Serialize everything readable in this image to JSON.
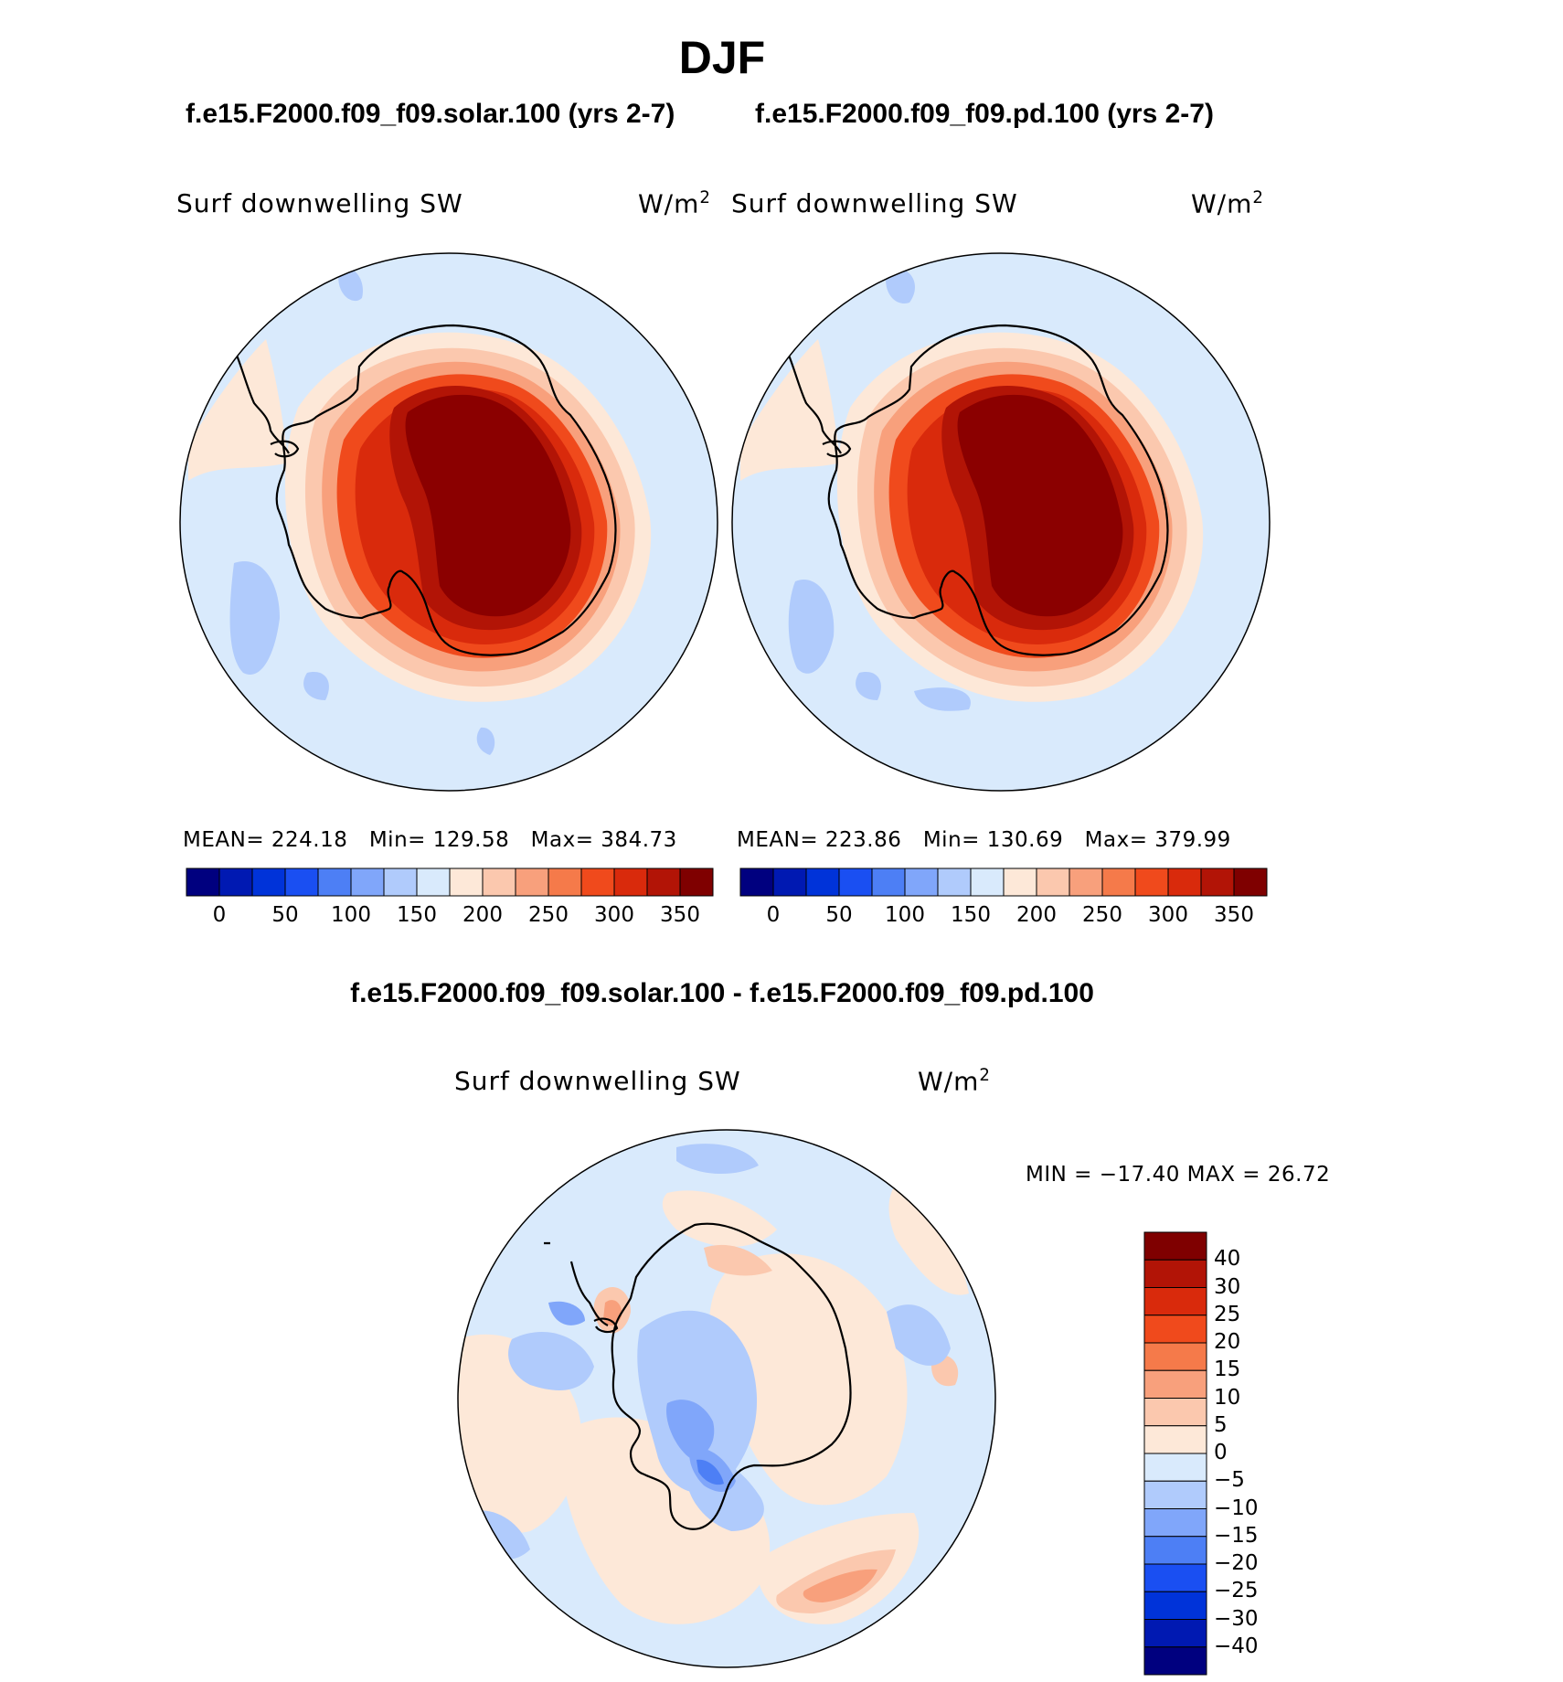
{
  "season": "DJF",
  "panels": [
    {
      "case_title": "f.e15.F2000.f09_f09.solar.100 (yrs 2-7)",
      "variable": "Surf downwelling SW",
      "units_base": "W/m",
      "units_exp": "2",
      "mean_label": "MEAN=",
      "mean": "224.18",
      "min_label": "Min=",
      "min": "129.58",
      "max_label": "Max=",
      "max": "384.73"
    },
    {
      "case_title": "f.e15.F2000.f09_f09.pd.100 (yrs 2-7)",
      "variable": "Surf downwelling SW",
      "units_base": "W/m",
      "units_exp": "2",
      "mean_label": "MEAN=",
      "mean": "223.86",
      "min_label": "Min=",
      "min": "130.69",
      "max_label": "Max=",
      "max": "379.99"
    }
  ],
  "difference": {
    "title": "f.e15.F2000.f09_f09.solar.100 - f.e15.F2000.f09_f09.pd.100",
    "variable": "Surf downwelling SW",
    "units_base": "W/m",
    "units_exp": "2",
    "minmax": "MIN = −17.40 MAX =   26.72"
  },
  "abs_colorbar": {
    "colors": [
      "#00007f",
      "#0019b2",
      "#0033d9",
      "#1a4ff2",
      "#4d7ff5",
      "#80a6fa",
      "#b0cbfc",
      "#d9eafc",
      "#fde8d8",
      "#fbc8ae",
      "#f8a07c",
      "#f57a4a",
      "#f04a1c",
      "#d92a0c",
      "#b21406",
      "#7f0000"
    ],
    "tick_labels": [
      "0",
      "50",
      "100",
      "150",
      "200",
      "250",
      "300",
      "350"
    ]
  },
  "diff_colorbar": {
    "colors": [
      "#00007f",
      "#0019b2",
      "#0033d9",
      "#1a4ff2",
      "#4d7ff5",
      "#80a6fa",
      "#b0cbfc",
      "#d9eafc",
      "#fde8d8",
      "#fbc8ae",
      "#f8a07c",
      "#f57a4a",
      "#f04a1c",
      "#d92a0c",
      "#b21406",
      "#7f0000"
    ],
    "tick_labels": [
      "40",
      "30",
      "25",
      "20",
      "15",
      "10",
      "5",
      "0",
      "−5",
      "−10",
      "−15",
      "−20",
      "−25",
      "−30",
      "−40"
    ]
  },
  "map_colors": {
    "ocean_abs": "#d9eafc",
    "warm_light": "#fde8d8",
    "warm_2": "#fbc8ae",
    "warm_3": "#f8a07c",
    "warm_4": "#f04a1c",
    "warm_5": "#d92a0c",
    "warm_6": "#b21406",
    "warm_7": "#8b0000",
    "cool_1": "#b0cbfc",
    "cool_2": "#80a6fa",
    "cool_3": "#4d7ff5",
    "coast": "#000000"
  }
}
